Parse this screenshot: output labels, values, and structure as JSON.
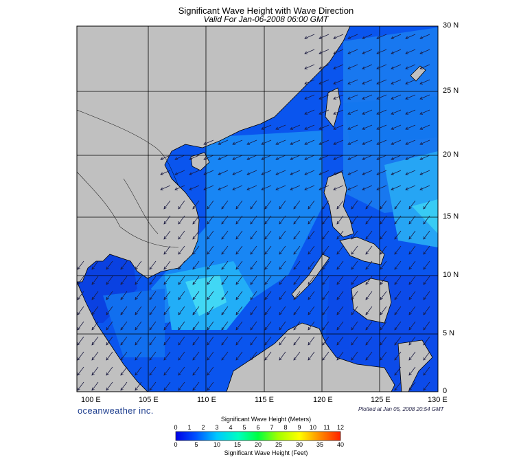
{
  "title": "Significant Wave Height with Wave Direction",
  "subtitle": "Valid For Jan-06-2008 06:00 GMT",
  "lat_labels": [
    "30 N",
    "25 N",
    "20 N",
    "15 N",
    "10 N",
    "5 N",
    "0"
  ],
  "lon_labels": [
    "100 E",
    "105 E",
    "110 E",
    "115 E",
    "120 E",
    "125 E",
    "130 E"
  ],
  "brand": "oceanweather inc.",
  "plotted": "Plotted at Jan 05, 2008 20:54 GMT",
  "colorbar": {
    "meters_title": "Significant Wave Height (Meters)",
    "feet_title": "Significant Wave Height (Feet)",
    "meters_ticks": [
      "0",
      "1",
      "2",
      "3",
      "4",
      "5",
      "6",
      "7",
      "8",
      "9",
      "10",
      "11",
      "12"
    ],
    "feet_ticks": [
      "0",
      "5",
      "10",
      "15",
      "20",
      "25",
      "30",
      "35",
      "40"
    ]
  },
  "colors": {
    "land": "#c0c0c0",
    "ocean_base": "#0a55ee",
    "grid": "#000000",
    "arrow": "#1a1a40"
  }
}
